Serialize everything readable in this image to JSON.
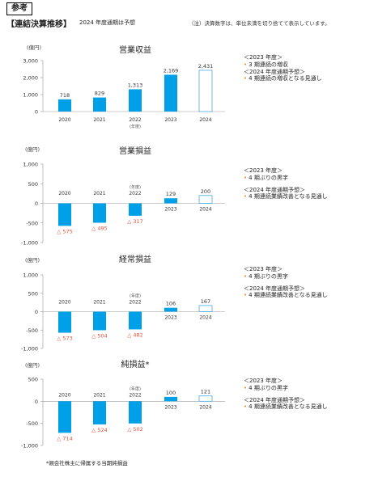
{
  "header": {
    "tag": "参考",
    "title": "【連結決算推移】",
    "subtitle": "2024 年度通期は予想",
    "note": "（注）決算数字は、単位未満を切り捨てて表示しています。"
  },
  "footnote": "*親会社株主に帰属する当期純損益",
  "colors": {
    "bar": "#00a0e9",
    "forecast_border": "#4aa8e8",
    "negative_label": "#e8503a",
    "bullet": "#f08a24"
  },
  "chart_data": [
    {
      "type": "bar",
      "title": "営業収益",
      "unit": "(億円)",
      "categories": [
        "2020",
        "2021",
        "2022",
        "2023",
        "2024"
      ],
      "values": [
        718,
        829,
        1313,
        2169,
        2431
      ],
      "value_labels": [
        "718",
        "829",
        "1,313",
        "2,169",
        "2,431"
      ],
      "forecast_index": 4,
      "fy_note": "(年度)",
      "yticks": [
        0,
        1000,
        2000,
        3000
      ],
      "ytick_labels": [
        "0",
        "1,000",
        "2,000",
        "3,000"
      ],
      "ylim": [
        0,
        3000
      ]
    },
    {
      "type": "bar",
      "title": "営業損益",
      "unit": "(億円)",
      "categories": [
        "2020",
        "2021",
        "2022",
        "2023",
        "2024"
      ],
      "values": [
        -575,
        -495,
        -317,
        129,
        200
      ],
      "value_labels": [
        "△ 575",
        "△ 495",
        "△ 317",
        "129",
        "200"
      ],
      "forecast_index": 4,
      "fy_note": "(年度)",
      "yticks": [
        1000,
        500,
        0,
        -500,
        -1000
      ],
      "ytick_labels": [
        "1,000",
        "500",
        "0",
        "-500",
        "-1,000"
      ],
      "ylim": [
        -1000,
        1000
      ]
    },
    {
      "type": "bar",
      "title": "経常損益",
      "unit": "(億円)",
      "categories": [
        "2020",
        "2021",
        "2022",
        "2023",
        "2024"
      ],
      "values": [
        -573,
        -504,
        -482,
        106,
        167
      ],
      "value_labels": [
        "△ 573",
        "△ 504",
        "△ 482",
        "106",
        "167"
      ],
      "forecast_index": 4,
      "fy_note": "(年度)",
      "yticks": [
        1000,
        500,
        0,
        -500,
        -1000
      ],
      "ytick_labels": [
        "1,000",
        "500",
        "0",
        "-500",
        "-1,000"
      ],
      "ylim": [
        -1000,
        1000
      ]
    },
    {
      "type": "bar",
      "title": "純損益*",
      "unit": "(億円)",
      "categories": [
        "2020",
        "2021",
        "2022",
        "2023",
        "2024"
      ],
      "values": [
        -714,
        -524,
        -502,
        100,
        121
      ],
      "value_labels": [
        "△ 714",
        "△ 524",
        "△ 502",
        "100",
        "121"
      ],
      "forecast_index": 4,
      "fy_note": "(年度)",
      "yticks": [
        500,
        0,
        -500,
        -1000
      ],
      "ytick_labels": [
        "500",
        "0",
        "-500",
        "-1,000"
      ],
      "ylim": [
        -1000,
        500
      ]
    }
  ],
  "commentary": [
    {
      "h1": "＜2023 年度＞",
      "p1": "3 期連続の増収",
      "h2": "＜2024 年度通期予想＞",
      "p2": "4 期連続の増収となる見通し"
    },
    {
      "h1": "＜2023 年度＞",
      "p1": "4 期ぶりの黒字",
      "h2": "＜2024 年度通期予想＞",
      "p2": "4 期連続業績改善となる見通し"
    },
    {
      "h1": "＜2023 年度＞",
      "p1": "4 期ぶりの黒字",
      "h2": "＜2024 年度通期予想＞",
      "p2": "4 期連続業績改善となる見通し"
    },
    {
      "h1": "＜2023 年度＞",
      "p1": "4 期ぶりの黒字",
      "h2": "＜2024 年度通期予想＞",
      "p2": "4 期連続業績改善となる見通し"
    }
  ]
}
